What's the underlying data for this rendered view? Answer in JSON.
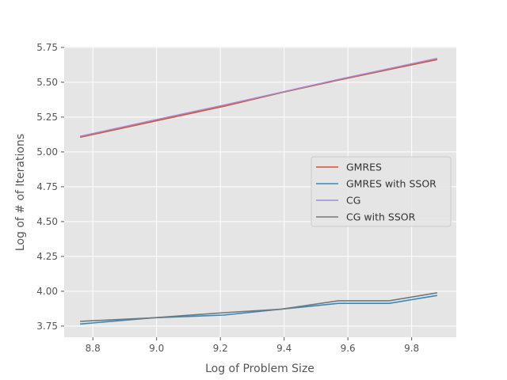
{
  "chart_data": {
    "type": "line",
    "title": "",
    "xlabel": "Log of Problem Size",
    "ylabel": "Log of # of Iterations",
    "xlim": [
      8.71,
      9.94
    ],
    "ylim": [
      3.67,
      5.755
    ],
    "xticks": [
      8.8,
      9.0,
      9.2,
      9.4,
      9.6,
      9.8
    ],
    "xtick_labels": [
      "8.8",
      "9.0",
      "9.2",
      "9.4",
      "9.6",
      "9.8"
    ],
    "yticks": [
      3.75,
      4.0,
      4.25,
      4.5,
      4.75,
      5.0,
      5.25,
      5.5,
      5.75
    ],
    "ytick_labels": [
      "3.75",
      "4.00",
      "4.25",
      "4.50",
      "4.75",
      "5.00",
      "5.25",
      "5.50",
      "5.75"
    ],
    "grid": true,
    "style": "ggplot",
    "legend_position": "center-right",
    "x": [
      8.76,
      8.99,
      9.21,
      9.39,
      9.57,
      9.73,
      9.88
    ],
    "series": [
      {
        "name": "GMRES",
        "color": "#E24A33",
        "values": [
          5.105,
          5.219,
          5.327,
          5.425,
          5.515,
          5.592,
          5.663
        ]
      },
      {
        "name": "GMRES with SSOR",
        "color": "#348ABD",
        "values": [
          3.765,
          3.81,
          3.829,
          3.871,
          3.913,
          3.913,
          3.97
        ]
      },
      {
        "name": "CG",
        "color": "#988ED5",
        "values": [
          5.112,
          5.227,
          5.335,
          5.428,
          5.52,
          5.598,
          5.671
        ]
      },
      {
        "name": "CG with SSOR",
        "color": "#777777",
        "values": [
          3.784,
          3.81,
          3.846,
          3.871,
          3.932,
          3.932,
          3.989
        ]
      }
    ]
  }
}
